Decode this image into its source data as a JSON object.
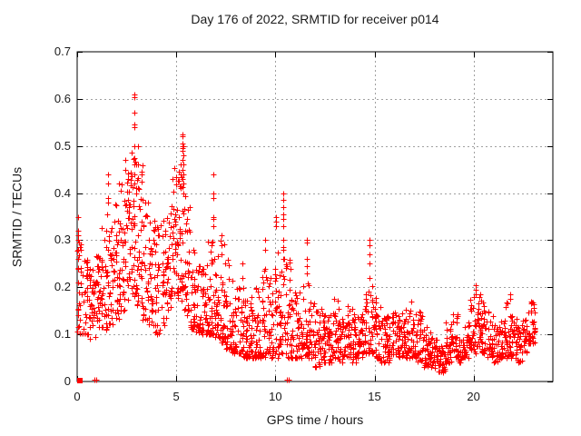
{
  "chart_data": {
    "type": "scatter",
    "title": "Day 176 of 2022, SRMTID for receiver p014",
    "xlabel": "GPS time / hours",
    "ylabel": "SRMTID / TECUs",
    "xlim": [
      0,
      24
    ],
    "ylim": [
      0,
      0.7
    ],
    "x_tick_labels": [
      "0",
      "5",
      "10",
      "15",
      "20"
    ],
    "y_tick_labels": [
      "0",
      "0.1",
      "0.2",
      "0.3",
      "0.4",
      "0.5",
      "0.6",
      "0.7"
    ],
    "grid": true,
    "legend": false,
    "marker": {
      "shape": "plus",
      "color": "#ff0000",
      "size": 7
    },
    "colors": {
      "marker": "#ff0000",
      "grid": "#a0a0a0",
      "frame": "#000000",
      "text": "#1a1a1a",
      "background": "#ffffff"
    },
    "seed": 7,
    "scatter_bands_format": [
      "x_start_hour",
      "x_end_hour",
      "n_points",
      "y_min_TECU",
      "y_max_TECU",
      "skew_exponent"
    ],
    "scatter_bands": [
      [
        0.0,
        0.3,
        24,
        0.1,
        0.3,
        1.3
      ],
      [
        0.3,
        0.6,
        30,
        0.1,
        0.26,
        1.3
      ],
      [
        0.6,
        0.9,
        30,
        0.09,
        0.24,
        1.3
      ],
      [
        0.9,
        1.2,
        30,
        0.1,
        0.27,
        1.3
      ],
      [
        1.2,
        1.5,
        30,
        0.11,
        0.33,
        1.5
      ],
      [
        1.5,
        1.8,
        30,
        0.12,
        0.38,
        1.6
      ],
      [
        1.8,
        2.1,
        30,
        0.13,
        0.4,
        1.6
      ],
      [
        2.1,
        2.4,
        32,
        0.15,
        0.43,
        1.5
      ],
      [
        2.4,
        2.7,
        34,
        0.17,
        0.46,
        1.5
      ],
      [
        2.7,
        3.0,
        34,
        0.18,
        0.5,
        1.5
      ],
      [
        3.0,
        3.3,
        34,
        0.16,
        0.46,
        1.5
      ],
      [
        3.3,
        3.6,
        30,
        0.13,
        0.4,
        1.6
      ],
      [
        3.6,
        3.9,
        28,
        0.12,
        0.37,
        1.6
      ],
      [
        3.9,
        4.2,
        28,
        0.1,
        0.33,
        1.5
      ],
      [
        4.2,
        4.5,
        28,
        0.12,
        0.35,
        1.5
      ],
      [
        4.5,
        4.8,
        30,
        0.15,
        0.4,
        1.5
      ],
      [
        4.8,
        5.1,
        32,
        0.18,
        0.46,
        1.4
      ],
      [
        5.1,
        5.4,
        32,
        0.17,
        0.47,
        1.5
      ],
      [
        5.4,
        5.7,
        30,
        0.14,
        0.4,
        1.6
      ],
      [
        5.7,
        6.0,
        30,
        0.11,
        0.3,
        1.6
      ],
      [
        6.0,
        6.3,
        32,
        0.1,
        0.25,
        1.6
      ],
      [
        6.3,
        6.6,
        34,
        0.1,
        0.26,
        1.8
      ],
      [
        6.6,
        6.9,
        34,
        0.1,
        0.3,
        2.0
      ],
      [
        6.9,
        7.2,
        32,
        0.09,
        0.28,
        2.0
      ],
      [
        7.2,
        7.5,
        30,
        0.08,
        0.3,
        2.0
      ],
      [
        7.5,
        7.8,
        28,
        0.07,
        0.26,
        1.8
      ],
      [
        7.8,
        8.1,
        28,
        0.06,
        0.22,
        1.7
      ],
      [
        8.1,
        8.4,
        28,
        0.06,
        0.2,
        1.7
      ],
      [
        8.4,
        8.7,
        28,
        0.05,
        0.19,
        1.6
      ],
      [
        8.7,
        9.0,
        28,
        0.05,
        0.18,
        1.6
      ],
      [
        9.0,
        9.3,
        28,
        0.05,
        0.2,
        1.7
      ],
      [
        9.3,
        9.6,
        28,
        0.05,
        0.24,
        1.8
      ],
      [
        9.6,
        9.9,
        28,
        0.05,
        0.22,
        1.8
      ],
      [
        9.9,
        10.2,
        28,
        0.05,
        0.3,
        2.0
      ],
      [
        10.2,
        10.5,
        28,
        0.06,
        0.28,
        1.9
      ],
      [
        10.5,
        10.8,
        28,
        0.05,
        0.26,
        1.9
      ],
      [
        10.8,
        11.1,
        28,
        0.05,
        0.2,
        1.7
      ],
      [
        11.1,
        11.4,
        28,
        0.05,
        0.2,
        1.6
      ],
      [
        11.4,
        11.7,
        28,
        0.05,
        0.22,
        1.7
      ],
      [
        11.7,
        12.0,
        28,
        0.05,
        0.18,
        1.6
      ],
      [
        12.0,
        12.3,
        28,
        0.03,
        0.15,
        1.4
      ],
      [
        12.3,
        12.6,
        28,
        0.04,
        0.17,
        1.4
      ],
      [
        12.6,
        12.9,
        28,
        0.04,
        0.16,
        1.4
      ],
      [
        12.9,
        13.2,
        28,
        0.05,
        0.18,
        1.5
      ],
      [
        13.2,
        13.5,
        28,
        0.04,
        0.14,
        1.4
      ],
      [
        13.5,
        13.8,
        28,
        0.05,
        0.16,
        1.4
      ],
      [
        13.8,
        14.1,
        28,
        0.04,
        0.16,
        1.4
      ],
      [
        14.1,
        14.4,
        28,
        0.05,
        0.15,
        1.4
      ],
      [
        14.4,
        14.7,
        28,
        0.06,
        0.2,
        1.6
      ],
      [
        14.7,
        15.0,
        28,
        0.06,
        0.22,
        1.7
      ],
      [
        15.0,
        15.3,
        28,
        0.05,
        0.18,
        1.6
      ],
      [
        15.3,
        15.6,
        28,
        0.04,
        0.15,
        1.5
      ],
      [
        15.6,
        15.9,
        28,
        0.04,
        0.14,
        1.4
      ],
      [
        15.9,
        16.2,
        28,
        0.05,
        0.15,
        1.4
      ],
      [
        16.2,
        16.5,
        28,
        0.05,
        0.15,
        1.4
      ],
      [
        16.5,
        16.8,
        28,
        0.05,
        0.16,
        1.4
      ],
      [
        16.8,
        17.1,
        28,
        0.05,
        0.17,
        1.5
      ],
      [
        17.1,
        17.4,
        28,
        0.04,
        0.15,
        1.5
      ],
      [
        17.4,
        17.7,
        26,
        0.03,
        0.12,
        1.4
      ],
      [
        17.7,
        18.0,
        26,
        0.03,
        0.11,
        1.4
      ],
      [
        18.0,
        18.3,
        28,
        0.02,
        0.1,
        1.3
      ],
      [
        18.3,
        18.6,
        28,
        0.02,
        0.09,
        1.3
      ],
      [
        18.6,
        18.9,
        26,
        0.04,
        0.13,
        1.4
      ],
      [
        18.9,
        19.2,
        26,
        0.05,
        0.15,
        1.5
      ],
      [
        19.2,
        19.5,
        26,
        0.04,
        0.1,
        1.3
      ],
      [
        19.5,
        19.8,
        26,
        0.05,
        0.13,
        1.4
      ],
      [
        19.8,
        20.1,
        28,
        0.06,
        0.18,
        1.5
      ],
      [
        20.1,
        20.4,
        28,
        0.07,
        0.2,
        1.5
      ],
      [
        20.4,
        20.7,
        28,
        0.06,
        0.17,
        1.5
      ],
      [
        20.7,
        21.0,
        26,
        0.05,
        0.15,
        1.5
      ],
      [
        21.0,
        21.3,
        26,
        0.04,
        0.13,
        1.4
      ],
      [
        21.3,
        21.6,
        26,
        0.05,
        0.16,
        1.5
      ],
      [
        21.6,
        21.9,
        26,
        0.05,
        0.17,
        1.5
      ],
      [
        21.9,
        22.2,
        26,
        0.05,
        0.14,
        1.4
      ],
      [
        22.2,
        22.5,
        26,
        0.04,
        0.13,
        1.4
      ],
      [
        22.5,
        22.8,
        26,
        0.06,
        0.15,
        1.4
      ],
      [
        22.8,
        23.1,
        28,
        0.08,
        0.17,
        1.2
      ]
    ],
    "spike_columns": [
      {
        "x": 0.05,
        "ys": [
          0.35,
          0.32,
          0.31,
          0.3,
          0.28,
          0.26,
          0.24,
          0.21
        ]
      },
      {
        "x": 1.55,
        "ys": [
          0.44,
          0.42,
          0.39,
          0.38
        ]
      },
      {
        "x": 2.42,
        "ys": [
          0.47,
          0.45
        ]
      },
      {
        "x": 2.88,
        "ys": [
          0.61,
          0.604,
          0.57,
          0.545,
          0.54,
          0.5,
          0.46,
          0.44,
          0.42
        ]
      },
      {
        "x": 2.96,
        "ys": [
          0.46,
          0.41,
          0.4
        ]
      },
      {
        "x": 3.06,
        "ys": [
          0.5,
          0.46
        ]
      },
      {
        "x": 5.22,
        "ys": [
          0.46,
          0.44,
          0.41
        ]
      },
      {
        "x": 5.3,
        "ys": [
          0.525,
          0.52,
          0.505,
          0.5,
          0.495,
          0.49,
          0.47,
          0.45,
          0.43
        ]
      },
      {
        "x": 5.38,
        "ys": [
          0.5,
          0.48,
          0.46,
          0.44,
          0.42,
          0.4
        ]
      },
      {
        "x": 6.85,
        "ys": [
          0.44,
          0.4,
          0.4,
          0.39,
          0.35,
          0.345,
          0.33
        ]
      },
      {
        "x": 7.3,
        "ys": [
          0.31,
          0.29,
          0.27
        ]
      },
      {
        "x": 8.35,
        "ys": [
          0.25,
          0.22
        ]
      },
      {
        "x": 9.5,
        "ys": [
          0.3,
          0.28,
          0.24
        ]
      },
      {
        "x": 10.02,
        "ys": [
          0.35,
          0.34,
          0.33
        ]
      },
      {
        "x": 10.4,
        "ys": [
          0.4,
          0.385,
          0.37,
          0.355,
          0.345,
          0.33,
          0.3,
          0.285,
          0.28
        ]
      },
      {
        "x": 11.6,
        "ys": [
          0.3,
          0.295,
          0.26,
          0.245,
          0.23
        ]
      },
      {
        "x": 14.75,
        "ys": [
          0.3,
          0.29,
          0.27,
          0.25,
          0.22
        ]
      },
      {
        "x": 20.1,
        "ys": [
          0.205,
          0.195,
          0.185
        ]
      },
      {
        "x": 21.85,
        "ys": [
          0.185,
          0.175
        ]
      },
      {
        "x": 22.9,
        "ys": [
          0.17,
          0.165
        ]
      }
    ],
    "near_zero_points": [
      [
        0.85,
        0.004
      ],
      [
        0.95,
        0.004
      ],
      [
        10.58,
        0.004
      ],
      [
        10.68,
        0.004
      ]
    ],
    "origin_square": {
      "x": 0.12,
      "y": 0.002
    }
  }
}
